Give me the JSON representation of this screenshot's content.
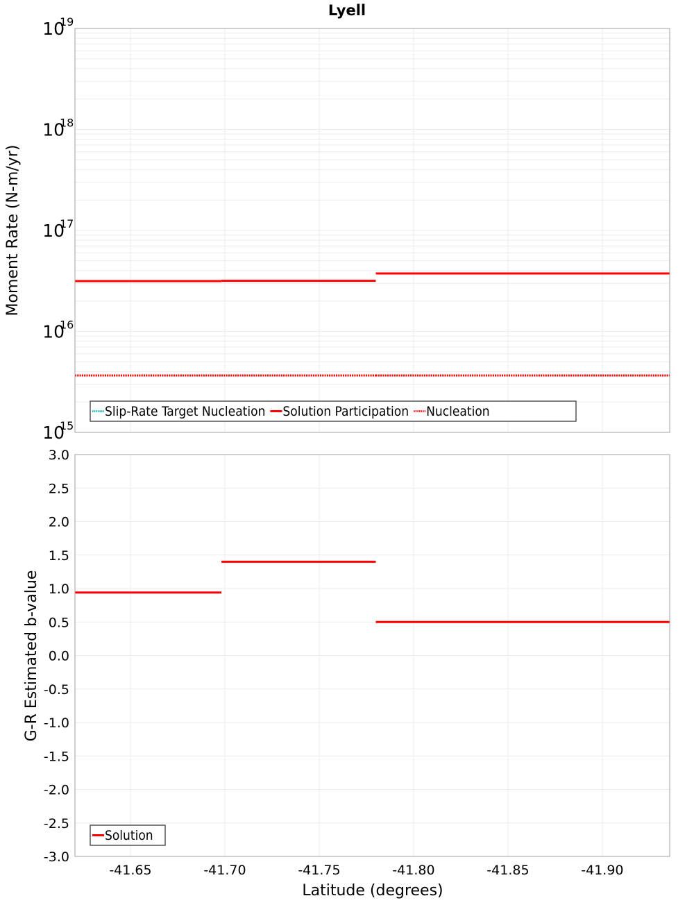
{
  "figure": {
    "title": "Lyell",
    "xlabel": "Latitude (degrees)"
  },
  "chart_data": [
    {
      "type": "line",
      "step": true,
      "title": "Lyell",
      "xlabel": "Latitude (degrees)",
      "ylabel": "Moment Rate (N-m/yr)",
      "yscale": "log",
      "ylim": [
        1000000000000000.0,
        1e+19
      ],
      "xlim": [
        -41.6206,
        -41.9357
      ],
      "x_inverted": true,
      "grid": true,
      "y_ticks": [
        {
          "base": "10",
          "exp": "15",
          "value": 1000000000000000.0
        },
        {
          "base": "10",
          "exp": "16",
          "value": 1e+16
        },
        {
          "base": "10",
          "exp": "17",
          "value": 1e+17
        },
        {
          "base": "10",
          "exp": "18",
          "value": 1e+18
        },
        {
          "base": "10",
          "exp": "19",
          "value": 1e+19
        }
      ],
      "legend": {
        "position": "lower-left",
        "entries": [
          {
            "label": "Slip-Rate Target Nucleation",
            "color": "#00B2B2",
            "style": "dotted"
          },
          {
            "label": "Solution Participation",
            "color": "#FF0000",
            "style": "solid"
          },
          {
            "label": "Nucleation",
            "color": "#FF0000",
            "style": "dotted"
          }
        ]
      },
      "series": [
        {
          "name": "Solution Participation",
          "color": "#FF0000",
          "style": "solid",
          "segments": [
            {
              "x0": -41.6206,
              "x1": -41.6982,
              "y": 3.15e+16
            },
            {
              "x0": -41.6982,
              "x1": -41.78,
              "y": 3.17e+16
            },
            {
              "x0": -41.78,
              "x1": -41.9357,
              "y": 3.75e+16
            }
          ]
        },
        {
          "name": "Nucleation",
          "color": "#FF0000",
          "style": "dotted",
          "segments": [
            {
              "x0": -41.6206,
              "x1": -41.6982,
              "y": 3660000000000000.0
            },
            {
              "x0": -41.6982,
              "x1": -41.78,
              "y": 3660000000000000.0
            },
            {
              "x0": -41.78,
              "x1": -41.9357,
              "y": 3660000000000000.0
            }
          ]
        },
        {
          "name": "Slip-Rate Target Nucleation",
          "color": "#00B2B2",
          "style": "dotted",
          "segments": [
            {
              "x0": -41.6206,
              "x1": -41.6982,
              "y": 3660000000000000.0
            },
            {
              "x0": -41.6982,
              "x1": -41.78,
              "y": 3660000000000000.0
            },
            {
              "x0": -41.78,
              "x1": -41.9357,
              "y": 3660000000000000.0
            }
          ]
        }
      ]
    },
    {
      "type": "line",
      "step": true,
      "title": "",
      "xlabel": "Latitude (degrees)",
      "ylabel": "G-R Estimated b-value",
      "yscale": "linear",
      "ylim": [
        -3.0,
        3.0
      ],
      "xlim": [
        -41.6206,
        -41.9357
      ],
      "x_inverted": true,
      "grid": true,
      "y_ticks": [
        "3.0",
        "2.5",
        "2.0",
        "1.5",
        "1.0",
        "0.5",
        "0.0",
        "-0.5",
        "-1.0",
        "-1.5",
        "-2.0",
        "-2.5",
        "-3.0"
      ],
      "x_ticks": [
        "-41.65",
        "-41.70",
        "-41.75",
        "-41.80",
        "-41.85",
        "-41.90"
      ],
      "legend": {
        "position": "lower-left",
        "entries": [
          {
            "label": "Solution",
            "color": "#FF0000",
            "style": "solid"
          }
        ]
      },
      "series": [
        {
          "name": "Solution",
          "color": "#FF0000",
          "style": "solid",
          "segments": [
            {
              "x0": -41.6206,
              "x1": -41.6982,
              "y": 0.94
            },
            {
              "x0": -41.6982,
              "x1": -41.78,
              "y": 1.4
            },
            {
              "x0": -41.78,
              "x1": -41.9357,
              "y": 0.5
            }
          ]
        }
      ]
    }
  ]
}
